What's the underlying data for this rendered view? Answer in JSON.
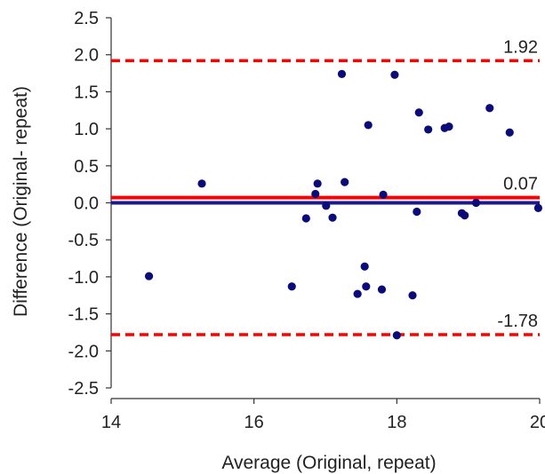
{
  "chart_data": {
    "type": "scatter",
    "title": "",
    "xlabel": "Average (Original, repeat)",
    "ylabel": "Difference (Original- repeat)",
    "xlim": [
      14,
      20
    ],
    "ylim": [
      -2.5,
      2.5
    ],
    "x_ticks": [
      "14",
      "16",
      "18",
      "20"
    ],
    "y_ticks": [
      "2.5",
      "2.0",
      "1.5",
      "1.0",
      "0.5",
      "0.0",
      "-0.5",
      "-1.0",
      "-1.5",
      "-2.0",
      "-2.5"
    ],
    "grid": false,
    "point_color": "#0b0b7a",
    "points": [
      {
        "x": 14.53,
        "y": -0.99
      },
      {
        "x": 15.27,
        "y": 0.26
      },
      {
        "x": 16.53,
        "y": -1.13
      },
      {
        "x": 16.73,
        "y": -0.21
      },
      {
        "x": 16.86,
        "y": 0.12
      },
      {
        "x": 16.89,
        "y": 0.26
      },
      {
        "x": 17.01,
        "y": -0.04
      },
      {
        "x": 17.1,
        "y": -0.2
      },
      {
        "x": 17.23,
        "y": 1.74
      },
      {
        "x": 17.27,
        "y": 0.28
      },
      {
        "x": 17.45,
        "y": -1.23
      },
      {
        "x": 17.55,
        "y": -0.86
      },
      {
        "x": 17.57,
        "y": -1.13
      },
      {
        "x": 17.6,
        "y": 1.05
      },
      {
        "x": 17.79,
        "y": -1.17
      },
      {
        "x": 17.81,
        "y": 0.11
      },
      {
        "x": 17.97,
        "y": 1.73
      },
      {
        "x": 18.0,
        "y": -1.79
      },
      {
        "x": 18.22,
        "y": -1.25
      },
      {
        "x": 18.28,
        "y": -0.12
      },
      {
        "x": 18.31,
        "y": 1.22
      },
      {
        "x": 18.44,
        "y": 0.99
      },
      {
        "x": 18.67,
        "y": 1.01
      },
      {
        "x": 18.73,
        "y": 1.03
      },
      {
        "x": 18.91,
        "y": -0.14
      },
      {
        "x": 18.95,
        "y": -0.17
      },
      {
        "x": 19.11,
        "y": 0.0
      },
      {
        "x": 19.3,
        "y": 1.28
      },
      {
        "x": 19.58,
        "y": 0.95
      },
      {
        "x": 19.98,
        "y": -0.07
      }
    ],
    "reference_lines": [
      {
        "y": 1.92,
        "label": "1.92",
        "style": "dashed",
        "color": "#ff0000"
      },
      {
        "y": 0.07,
        "label": "0.07",
        "style": "solid",
        "color": "#ff0000"
      },
      {
        "y": 0.0,
        "label": "",
        "style": "solid",
        "color": "#1a1a8c"
      },
      {
        "y": -1.78,
        "label": "-1.78",
        "style": "dashed",
        "color": "#ff0000"
      }
    ]
  }
}
